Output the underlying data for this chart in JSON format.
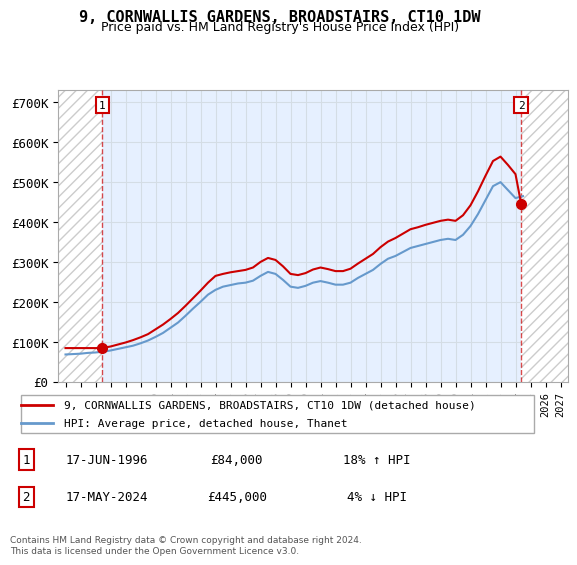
{
  "title": "9, CORNWALLIS GARDENS, BROADSTAIRS, CT10 1DW",
  "subtitle": "Price paid vs. HM Land Registry's House Price Index (HPI)",
  "legend_line1": "9, CORNWALLIS GARDENS, BROADSTAIRS, CT10 1DW (detached house)",
  "legend_line2": "HPI: Average price, detached house, Thanet",
  "footnote": "Contains HM Land Registry data © Crown copyright and database right 2024.\nThis data is licensed under the Open Government Licence v3.0.",
  "transaction1_label": "1",
  "transaction1_date": "17-JUN-1996",
  "transaction1_price": "£84,000",
  "transaction1_hpi": "18% ↑ HPI",
  "transaction2_label": "2",
  "transaction2_date": "17-MAY-2024",
  "transaction2_price": "£445,000",
  "transaction2_hpi": "4% ↓ HPI",
  "sale_color": "#cc0000",
  "hpi_color": "#6699cc",
  "hatch_color": "#cccccc",
  "background_color": "#ffffff",
  "plot_bg_color": "#f0f4ff",
  "grid_color": "#cccccc",
  "ylim": [
    0,
    730000
  ],
  "yticks": [
    0,
    100000,
    200000,
    300000,
    400000,
    500000,
    600000,
    700000
  ],
  "ytick_labels": [
    "£0",
    "£100K",
    "£200K",
    "£300K",
    "£400K",
    "£500K",
    "£600K",
    "£700K"
  ],
  "xlim_start": 1993.5,
  "xlim_end": 2027.5,
  "sale1_x": 1996.46,
  "sale1_y": 84000,
  "sale2_x": 2024.38,
  "sale2_y": 445000,
  "hpi_years": [
    1994,
    1994.5,
    1995,
    1995.5,
    1996,
    1996.5,
    1997,
    1997.5,
    1998,
    1998.5,
    1999,
    1999.5,
    2000,
    2000.5,
    2001,
    2001.5,
    2002,
    2002.5,
    2003,
    2003.5,
    2004,
    2004.5,
    2005,
    2005.5,
    2006,
    2006.5,
    2007,
    2007.5,
    2008,
    2008.5,
    2009,
    2009.5,
    2010,
    2010.5,
    2011,
    2011.5,
    2012,
    2012.5,
    2013,
    2013.5,
    2014,
    2014.5,
    2015,
    2015.5,
    2016,
    2016.5,
    2017,
    2017.5,
    2018,
    2018.5,
    2019,
    2019.5,
    2020,
    2020.5,
    2021,
    2021.5,
    2022,
    2022.5,
    2023,
    2023.5,
    2024,
    2024.5
  ],
  "hpi_values": [
    68000,
    69000,
    70000,
    72000,
    73000,
    75000,
    78000,
    82000,
    86000,
    90000,
    96000,
    103000,
    112000,
    122000,
    135000,
    148000,
    165000,
    183000,
    200000,
    218000,
    230000,
    238000,
    242000,
    246000,
    248000,
    253000,
    265000,
    275000,
    270000,
    255000,
    238000,
    235000,
    240000,
    248000,
    252000,
    248000,
    243000,
    243000,
    248000,
    260000,
    270000,
    280000,
    295000,
    308000,
    315000,
    325000,
    335000,
    340000,
    345000,
    350000,
    355000,
    358000,
    355000,
    368000,
    390000,
    420000,
    455000,
    490000,
    500000,
    480000,
    460000,
    465000
  ],
  "sold_years": [
    1994.0,
    1994.5,
    1995.0,
    1995.5,
    1996.0,
    1996.46,
    1996.5,
    1997.0,
    1997.5,
    1998.0,
    1998.5,
    1999.0,
    1999.5,
    2000.0,
    2000.5,
    2001.0,
    2001.5,
    2002.0,
    2002.5,
    2003.0,
    2003.5,
    2004.0,
    2004.5,
    2005.0,
    2005.5,
    2006.0,
    2006.5,
    2007.0,
    2007.5,
    2008.0,
    2008.5,
    2009.0,
    2009.5,
    2010.0,
    2010.5,
    2011.0,
    2011.5,
    2012.0,
    2012.5,
    2013.0,
    2013.5,
    2014.0,
    2014.5,
    2015.0,
    2015.5,
    2016.0,
    2016.5,
    2017.0,
    2017.5,
    2018.0,
    2018.5,
    2019.0,
    2019.5,
    2020.0,
    2020.5,
    2021.0,
    2021.5,
    2022.0,
    2022.5,
    2023.0,
    2023.5,
    2024.0,
    2024.38,
    2024.5
  ],
  "sold_values": [
    84000,
    84000,
    84000,
    84000,
    84000,
    84000,
    84600,
    88000,
    93000,
    98000,
    104000,
    111000,
    119000,
    131000,
    143000,
    157000,
    172000,
    190000,
    209000,
    228000,
    248000,
    265000,
    270000,
    274000,
    277000,
    280000,
    286000,
    300000,
    310000,
    305000,
    289000,
    270000,
    267000,
    272000,
    281000,
    286000,
    282000,
    277000,
    277000,
    283000,
    296000,
    308000,
    320000,
    337000,
    351000,
    360000,
    371000,
    382000,
    387000,
    393000,
    398000,
    403000,
    406000,
    403000,
    417000,
    442000,
    477000,
    516000,
    553000,
    564000,
    543000,
    520000,
    445000,
    448000
  ]
}
